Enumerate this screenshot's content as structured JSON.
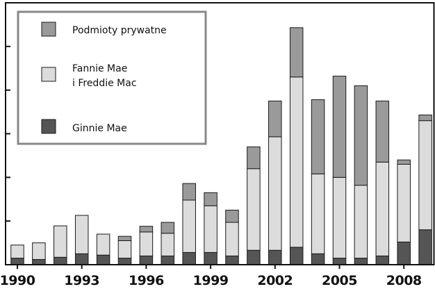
{
  "colors": {
    "ginnie": "#555555",
    "fannie_freddie": "#dcdcdc",
    "private": "#9a9a9a",
    "axis": "#111111",
    "legend_border": "#888888"
  },
  "chart_data": {
    "type": "bar",
    "stacked": true,
    "title": "",
    "xlabel": "",
    "ylabel": "",
    "ylim": [
      0,
      6
    ],
    "y_ticks": [
      1,
      2,
      3,
      4,
      5
    ],
    "y_tick_labels_shown": false,
    "grid": false,
    "legend": "top-left",
    "categories": [
      1990,
      1991,
      1992,
      1993,
      1994,
      1995,
      1996,
      1997,
      1998,
      1999,
      2000,
      2001,
      2002,
      2003,
      2004,
      2005,
      2006,
      2007,
      2008,
      2009
    ],
    "x_tick_labels": [
      "1990",
      "1993",
      "1996",
      "1999",
      "2002",
      "2005",
      "2008"
    ],
    "x_tick_label_categories": [
      1990,
      1993,
      1996,
      1999,
      2002,
      2005,
      2008
    ],
    "series": [
      {
        "name": "Ginnie Mae",
        "color_key": "ginnie",
        "values": [
          0.15,
          0.12,
          0.17,
          0.25,
          0.22,
          0.15,
          0.2,
          0.2,
          0.28,
          0.28,
          0.2,
          0.33,
          0.33,
          0.4,
          0.25,
          0.15,
          0.15,
          0.2,
          0.52,
          0.8
        ]
      },
      {
        "name": "Fannie Mae\ni Freddie Mac",
        "color_key": "fannie_freddie",
        "values": [
          0.3,
          0.38,
          0.72,
          0.88,
          0.48,
          0.4,
          0.55,
          0.52,
          1.2,
          1.07,
          0.77,
          1.87,
          2.6,
          3.9,
          1.83,
          1.85,
          1.67,
          2.15,
          1.78,
          2.5
        ]
      },
      {
        "name": "Podmioty prywatne",
        "color_key": "private",
        "values": [
          0,
          0,
          0,
          0,
          0,
          0.1,
          0.13,
          0.25,
          0.38,
          0.3,
          0.28,
          0.5,
          0.82,
          1.13,
          1.7,
          2.32,
          2.28,
          1.4,
          0.1,
          0.13
        ]
      }
    ]
  },
  "legend": {
    "items": [
      {
        "label_lines": [
          "Podmioty prywatne"
        ],
        "color_key": "private"
      },
      {
        "label_lines": [
          "Fannie Mae",
          "i Freddie Mac"
        ],
        "color_key": "fannie_freddie"
      },
      {
        "label_lines": [
          "Ginnie Mae"
        ],
        "color_key": "ginnie"
      }
    ]
  }
}
